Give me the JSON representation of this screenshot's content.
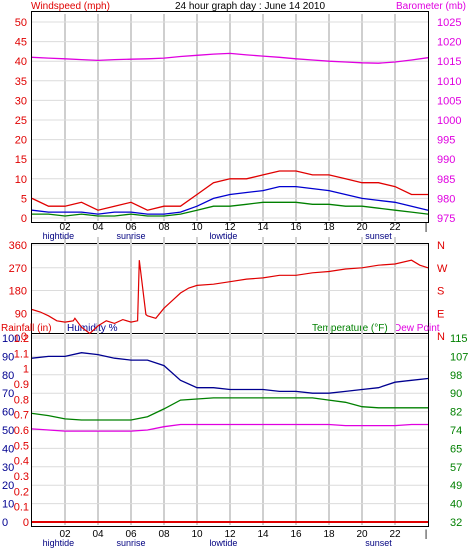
{
  "chart_data": [
    {
      "type": "line",
      "title": "24 hour graph day : June 14 2010",
      "ylabel_left": "Windspeed (mph)",
      "ylabel_right": "Barometer (mb)",
      "ylim_left": [
        0,
        50
      ],
      "ylim_right": [
        975,
        1025
      ],
      "yticks_left": [
        "0",
        "5",
        "10",
        "15",
        "20",
        "25",
        "30",
        "35",
        "40",
        "45",
        "50"
      ],
      "yticks_right": [
        "975",
        "980",
        "985",
        "990",
        "995",
        "1000",
        "1005",
        "1010",
        "1015",
        "1020",
        "1025"
      ],
      "xlim": [
        0,
        24
      ],
      "xticks": [
        "02",
        "04",
        "06",
        "08",
        "10",
        "12",
        "14",
        "16",
        "18",
        "20",
        "22"
      ],
      "end_tick": "|",
      "markers": [
        {
          "label": "hightide",
          "hour": 1.6,
          "color": "#000080"
        },
        {
          "label": "sunrise",
          "hour": 6.0,
          "color": "#000080"
        },
        {
          "label": "lowtide",
          "hour": 11.6,
          "color": "#000080"
        },
        {
          "label": "sunset",
          "hour": 21.0,
          "color": "#000080"
        }
      ],
      "grid": true,
      "series": [
        {
          "name": "Barometer",
          "axis": "right",
          "color": "#e000e0",
          "x": [
            0,
            1,
            2,
            3,
            4,
            5,
            6,
            7,
            8,
            9,
            10,
            11,
            12,
            13,
            14,
            15,
            16,
            17,
            18,
            19,
            20,
            21,
            22,
            23,
            24
          ],
          "values": [
            1016,
            1015.8,
            1015.6,
            1015.4,
            1015.2,
            1015.4,
            1015.5,
            1015.6,
            1015.8,
            1016.2,
            1016.5,
            1016.8,
            1017,
            1016.6,
            1016.3,
            1016,
            1015.6,
            1015.3,
            1015,
            1014.8,
            1014.6,
            1014.5,
            1014.8,
            1015.3,
            1015.9
          ]
        },
        {
          "name": "Wind gust",
          "axis": "left",
          "color": "#e00000",
          "x": [
            0,
            1,
            2,
            3,
            4,
            5,
            6,
            7,
            8,
            9,
            10,
            11,
            12,
            13,
            14,
            15,
            16,
            17,
            18,
            19,
            20,
            21,
            22,
            23,
            24
          ],
          "values": [
            5,
            3,
            3,
            4,
            2,
            3,
            4,
            2,
            3,
            3,
            6,
            9,
            10,
            10,
            11,
            12,
            12,
            11,
            11,
            10,
            9,
            9,
            8,
            6,
            6
          ]
        },
        {
          "name": "Wind average",
          "axis": "left",
          "color": "#0000d0",
          "x": [
            0,
            1,
            2,
            3,
            4,
            5,
            6,
            7,
            8,
            9,
            10,
            11,
            12,
            13,
            14,
            15,
            16,
            17,
            18,
            19,
            20,
            21,
            22,
            23,
            24
          ],
          "values": [
            2,
            1.5,
            1.5,
            1.5,
            1,
            1.5,
            1.5,
            1,
            1,
            1.5,
            3,
            5,
            6,
            6.5,
            7,
            8,
            8,
            7.5,
            7,
            6,
            5,
            4.5,
            4,
            3,
            2
          ]
        },
        {
          "name": "Wind speed",
          "axis": "left",
          "color": "#008000",
          "x": [
            0,
            1,
            2,
            3,
            4,
            5,
            6,
            7,
            8,
            9,
            10,
            11,
            12,
            13,
            14,
            15,
            16,
            17,
            18,
            19,
            20,
            21,
            22,
            23,
            24
          ],
          "values": [
            1,
            1,
            0.5,
            1,
            0.5,
            0.5,
            1,
            0.5,
            0.5,
            1,
            2,
            3,
            3,
            3.5,
            4,
            4,
            4,
            3.5,
            3.5,
            3,
            3,
            2.5,
            2,
            1.5,
            1
          ]
        }
      ]
    },
    {
      "type": "line",
      "yticks_left": [
        "0",
        "90",
        "180",
        "270",
        "360"
      ],
      "ylim_left": [
        0,
        360
      ],
      "yticks_right": [
        "N",
        "E",
        "S",
        "W",
        "N"
      ],
      "xlim": [
        0,
        24
      ],
      "grid": true,
      "series": [
        {
          "name": "Wind direction",
          "axis": "left",
          "color": "#e00000",
          "x": [
            0,
            0.5,
            1,
            1.5,
            2,
            2.5,
            2.6,
            3,
            3.5,
            4,
            4.5,
            5,
            5.5,
            6,
            6.4,
            6.5,
            6.9,
            7,
            7.5,
            8,
            8.5,
            9,
            9.5,
            10,
            11,
            12,
            13,
            14,
            15,
            16,
            17,
            18,
            19,
            20,
            21,
            22,
            23,
            23.5,
            24
          ],
          "values": [
            105,
            95,
            80,
            60,
            55,
            60,
            70,
            35,
            10,
            40,
            60,
            50,
            65,
            55,
            60,
            300,
            85,
            80,
            70,
            110,
            140,
            170,
            190,
            200,
            205,
            215,
            225,
            230,
            240,
            240,
            250,
            255,
            265,
            270,
            280,
            285,
            300,
            280,
            270
          ]
        }
      ]
    },
    {
      "type": "line",
      "title_left_1": "Rainfall (in)",
      "title_left_2": "Humidity %",
      "title_right_1": "Temperature (°F)",
      "title_right_2": "Dew Point",
      "yticks_rain": [
        "0",
        "0.1",
        "0.2",
        "0.3",
        "0.4",
        "0.5",
        "0.6",
        "0.7",
        "0.8",
        "0.9",
        "1",
        "1.1",
        "1.2"
      ],
      "yticks_humidity": [
        "0",
        "10",
        "20",
        "30",
        "40",
        "50",
        "60",
        "70",
        "80",
        "90",
        "100"
      ],
      "yticks_temp": [
        "32",
        "40",
        "49",
        "57",
        "65",
        "74",
        "82",
        "90",
        "98",
        "107",
        "115"
      ],
      "ylim_left": [
        0,
        100
      ],
      "ylim_right": [
        32,
        115
      ],
      "xlim": [
        0,
        24
      ],
      "xticks": [
        "02",
        "04",
        "06",
        "08",
        "10",
        "12",
        "14",
        "16",
        "18",
        "20",
        "22"
      ],
      "end_tick": "|",
      "markers": [
        {
          "label": "hightide",
          "hour": 1.6,
          "color": "#000080"
        },
        {
          "label": "sunrise",
          "hour": 6.0,
          "color": "#000080"
        },
        {
          "label": "lowtide",
          "hour": 11.6,
          "color": "#000080"
        },
        {
          "label": "sunset",
          "hour": 21.0,
          "color": "#000080"
        }
      ],
      "grid": true,
      "series": [
        {
          "name": "Humidity",
          "axis": "left",
          "color": "#000090",
          "x": [
            0,
            1,
            2,
            3,
            4,
            5,
            6,
            7,
            8,
            9,
            10,
            11,
            12,
            13,
            14,
            15,
            16,
            17,
            18,
            19,
            20,
            21,
            22,
            23,
            24
          ],
          "values": [
            89,
            90,
            90,
            92,
            91,
            89,
            88,
            88,
            85,
            77,
            73,
            73,
            72,
            72,
            72,
            71,
            71,
            70,
            70,
            71,
            72,
            73,
            76,
            77,
            78
          ]
        },
        {
          "name": "Temperature",
          "axis": "right",
          "color": "#008000",
          "x": [
            0,
            1,
            2,
            3,
            4,
            5,
            6,
            7,
            8,
            9,
            10,
            11,
            12,
            13,
            14,
            15,
            16,
            17,
            18,
            19,
            20,
            21,
            22,
            23,
            24
          ],
          "values": [
            81,
            80,
            78.5,
            78,
            78,
            78,
            78,
            79.5,
            83,
            87,
            87.5,
            88,
            88,
            88,
            88,
            88,
            88,
            88,
            87,
            86,
            84,
            83.5,
            83.5,
            83.5,
            83.5
          ]
        },
        {
          "name": "Dew Point",
          "axis": "right",
          "color": "#e000e0",
          "x": [
            0,
            1,
            2,
            3,
            4,
            5,
            6,
            7,
            8,
            9,
            10,
            11,
            12,
            13,
            14,
            15,
            16,
            17,
            18,
            19,
            20,
            21,
            22,
            23,
            24
          ],
          "values": [
            74,
            73.5,
            73,
            73,
            73,
            73,
            73,
            73.5,
            75,
            76,
            76,
            76,
            76,
            76,
            76,
            76,
            76,
            76,
            76,
            75.5,
            75.5,
            75.5,
            75.5,
            76,
            76
          ]
        },
        {
          "name": "Rainfall",
          "axis": "rain",
          "color": "#e00000",
          "x": [
            0,
            24
          ],
          "values": [
            0,
            0
          ]
        }
      ]
    }
  ]
}
